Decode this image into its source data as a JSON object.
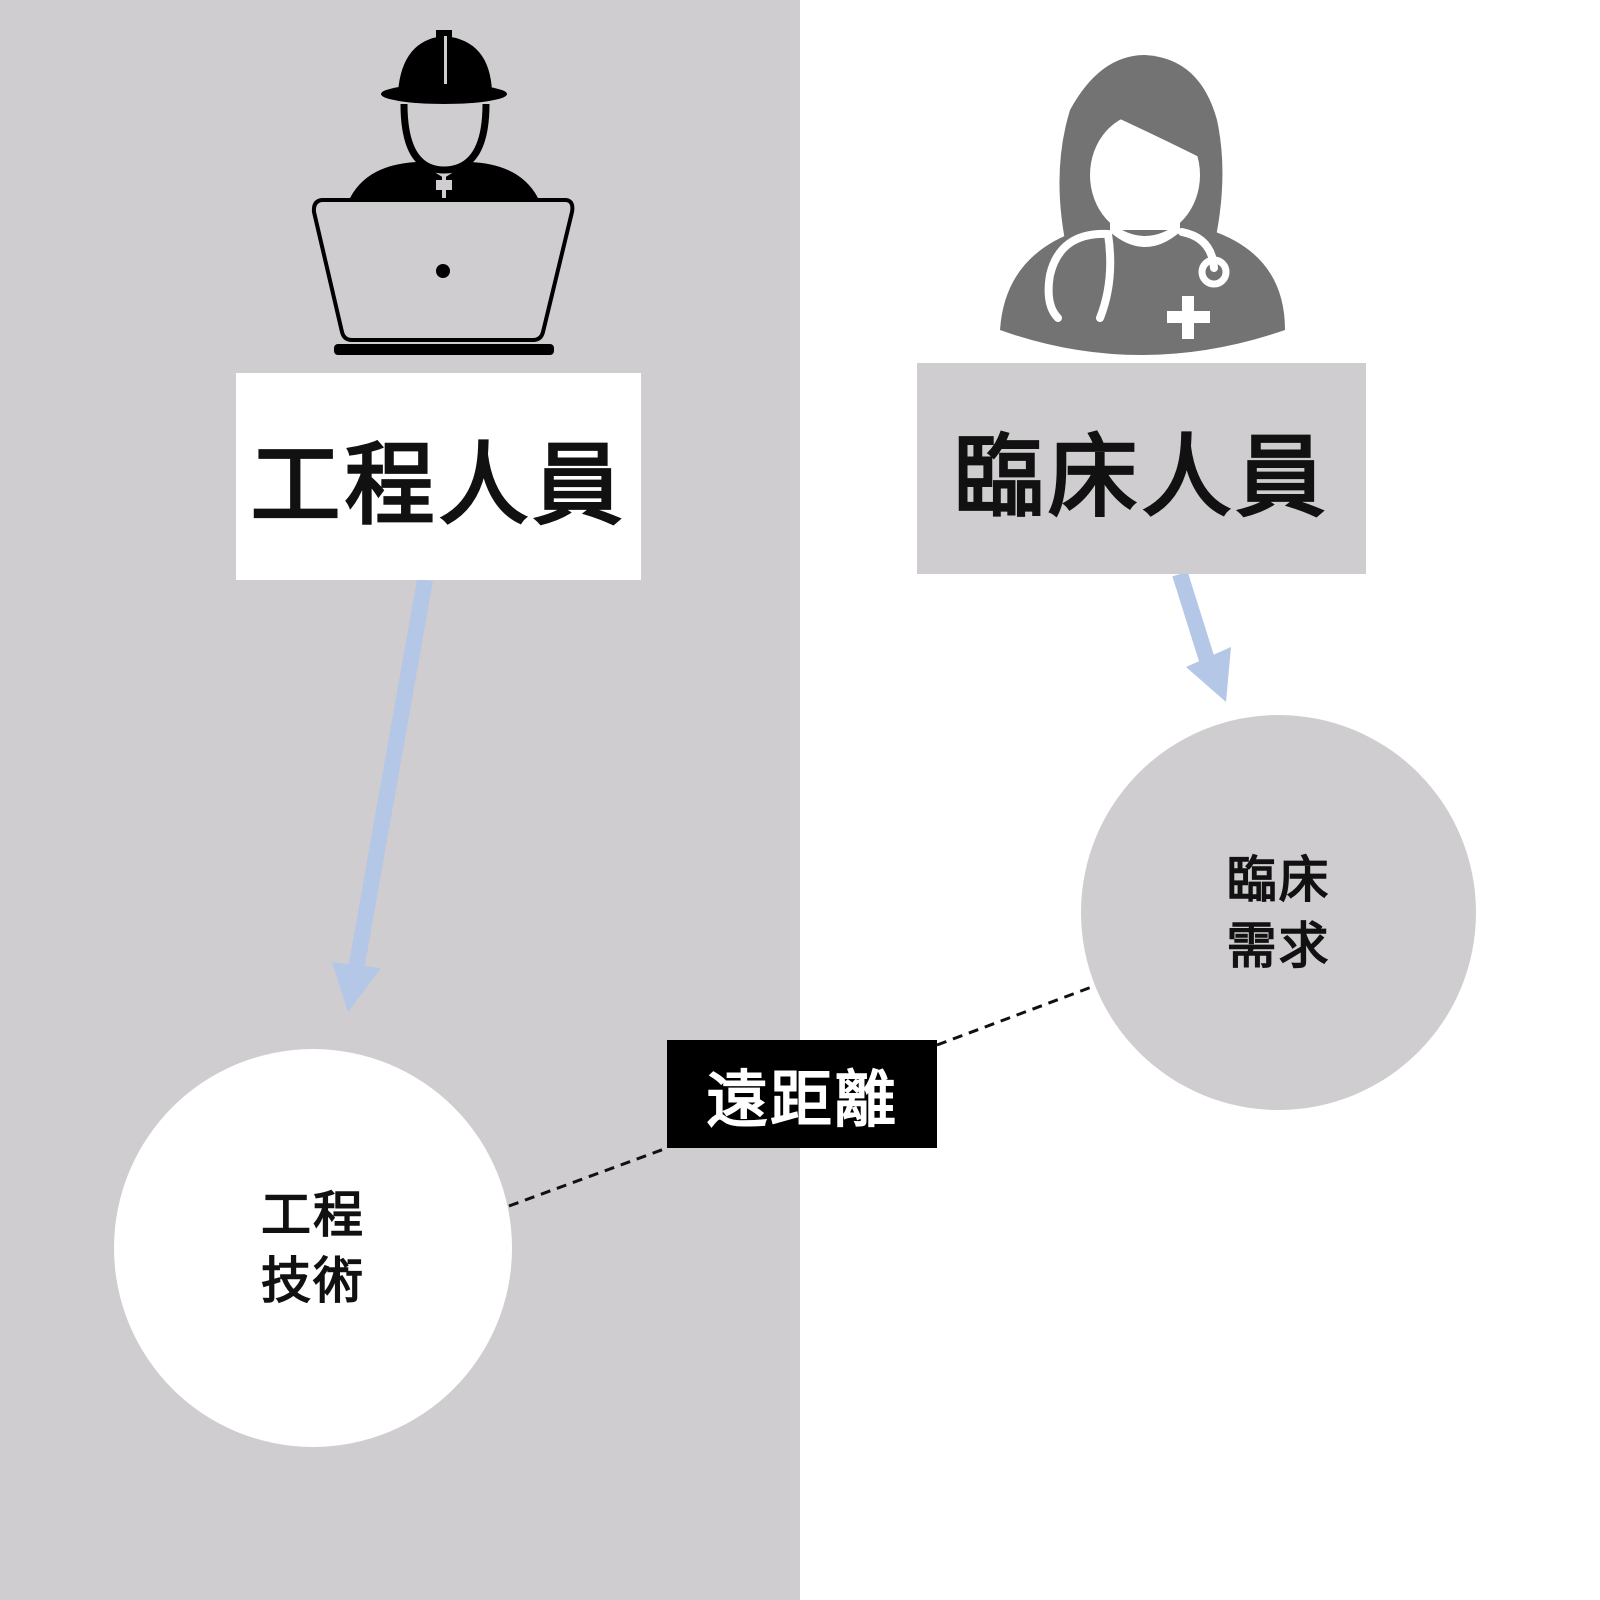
{
  "engineer": {
    "label": "工程人員",
    "node": "工程技術",
    "icon": "engineer-with-laptop-icon"
  },
  "clinician": {
    "label": "臨床人員",
    "node": "臨床需求",
    "icon": "female-doctor-icon"
  },
  "connector": {
    "label": "遠距離"
  },
  "colors": {
    "panel_gray": "#cfcdcf",
    "arrow": "#b4c7e7",
    "engineer_icon": "#111111",
    "doctor_icon": "#737373"
  }
}
